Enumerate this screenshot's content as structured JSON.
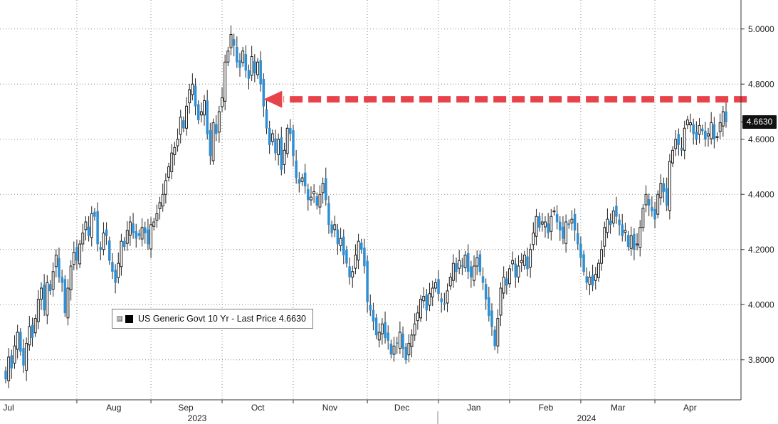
{
  "chart_data": {
    "type": "candlestick",
    "title": "",
    "ylim": [
      3.66,
      5.1
    ],
    "y_ticks": [
      {
        "value": 3.8,
        "label": "3.8000"
      },
      {
        "value": 4.0,
        "label": "4.0000"
      },
      {
        "value": 4.2,
        "label": "4.2000"
      },
      {
        "value": 4.4,
        "label": "4.4000"
      },
      {
        "value": 4.6,
        "label": "4.6000"
      },
      {
        "value": 4.8,
        "label": "4.8000"
      },
      {
        "value": 5.0,
        "label": "5.0000"
      }
    ],
    "month_labels": [
      "Jul",
      "Aug",
      "Sep",
      "Oct",
      "Nov",
      "Dec",
      "Jan",
      "Feb",
      "Mar",
      "Apr"
    ],
    "year_labels": [
      "2023",
      "2024"
    ],
    "series": [
      {
        "name": "US Generic Govt 10 Yr",
        "close": [
          3.73,
          3.81,
          3.77,
          3.85,
          3.9,
          3.83,
          3.78,
          3.86,
          3.92,
          3.88,
          3.95,
          4.02,
          4.06,
          3.98,
          4.08,
          4.05,
          4.12,
          4.18,
          4.1,
          4.08,
          3.97,
          4.06,
          4.14,
          4.19,
          4.16,
          4.22,
          4.26,
          4.3,
          4.25,
          4.33,
          4.32,
          4.22,
          4.2,
          4.26,
          4.25,
          4.16,
          4.12,
          4.08,
          4.15,
          4.23,
          4.21,
          4.27,
          4.3,
          4.26,
          4.24,
          4.25,
          4.28,
          4.26,
          4.22,
          4.29,
          4.3,
          4.33,
          4.37,
          4.4,
          4.45,
          4.5,
          4.55,
          4.57,
          4.6,
          4.68,
          4.64,
          4.72,
          4.78,
          4.8,
          4.72,
          4.67,
          4.7,
          4.74,
          4.62,
          4.54,
          4.66,
          4.62,
          4.7,
          4.75,
          4.88,
          4.92,
          4.98,
          4.94,
          4.88,
          4.86,
          4.92,
          4.85,
          4.82,
          4.9,
          4.84,
          4.88,
          4.8,
          4.72,
          4.64,
          4.58,
          4.62,
          4.55,
          4.6,
          4.49,
          4.56,
          4.64,
          4.62,
          4.54,
          4.46,
          4.44,
          4.46,
          4.43,
          4.38,
          4.39,
          4.41,
          4.36,
          4.4,
          4.44,
          4.38,
          4.29,
          4.26,
          4.29,
          4.22,
          4.24,
          4.18,
          4.15,
          4.1,
          4.12,
          4.18,
          4.23,
          4.2,
          4.14,
          4.01,
          3.98,
          3.94,
          3.89,
          3.9,
          3.93,
          3.88,
          3.87,
          3.82,
          3.85,
          3.86,
          3.9,
          3.84,
          3.8,
          3.86,
          3.89,
          3.93,
          3.97,
          4.02,
          4.03,
          3.98,
          4.04,
          4.06,
          4.08,
          4.04,
          4.01,
          4,
          4.05,
          4.1,
          4.15,
          4.12,
          4.16,
          4.14,
          4.18,
          4.12,
          4.1,
          4.14,
          4.17,
          4.12,
          4.08,
          4.02,
          3.96,
          3.92,
          3.85,
          3.95,
          4.06,
          4.1,
          4.07,
          4.13,
          4.16,
          4.1,
          4.14,
          4.16,
          4.18,
          4.13,
          4.2,
          4.26,
          4.32,
          4.28,
          4.3,
          4.3,
          4.26,
          4.32,
          4.34,
          4.3,
          4.27,
          4.24,
          4.3,
          4.29,
          4.31,
          4.27,
          4.22,
          4.17,
          4.12,
          4.08,
          4.1,
          4.07,
          4.11,
          4.15,
          4.2,
          4.28,
          4.31,
          4.29,
          4.34,
          4.32,
          4.29,
          4.25,
          4.27,
          4.21,
          4.25,
          4.2,
          4.22,
          4.28,
          4.35,
          4.4,
          4.36,
          4.34,
          4.31,
          4.4,
          4.44,
          4.41,
          4.36,
          4.52,
          4.56,
          4.6,
          4.58,
          4.56,
          4.64,
          4.67,
          4.66,
          4.62,
          4.6,
          4.65,
          4.63,
          4.6,
          4.62,
          4.66,
          4.6,
          4.61,
          4.66,
          4.7,
          4.663
        ],
        "last_price": 4.663,
        "last_price_label": "4.6630"
      }
    ],
    "annotations": [
      {
        "type": "dashed-arrow",
        "color": "#e8424a",
        "from_index": 250,
        "to_index": 87,
        "value": 4.745
      }
    ],
    "up_color": "#1a1a1a",
    "down_color": "#2e8fd4",
    "grid": true,
    "legend": {
      "position": "bottom-left",
      "toggle": "⊞",
      "label": "US Generic Govt 10 Yr - Last Price 4.6630"
    }
  }
}
